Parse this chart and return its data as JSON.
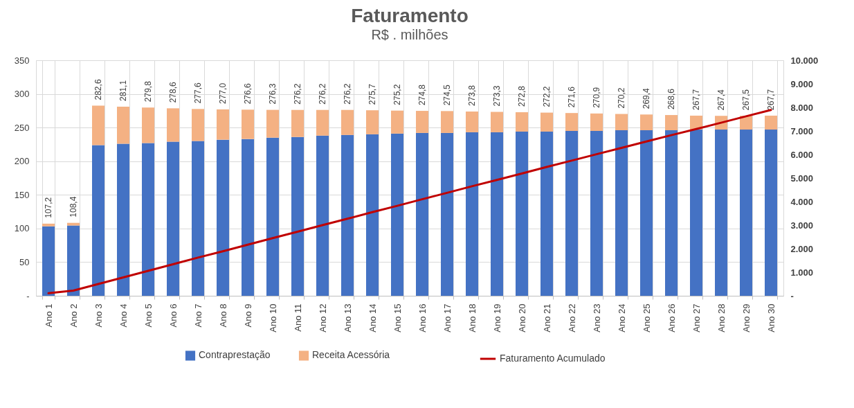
{
  "chart_data": {
    "type": "bar",
    "stacked": true,
    "title": "Faturamento",
    "subtitle": "R$ . milhões",
    "categories": [
      "Ano 1",
      "Ano 2",
      "Ano 3",
      "Ano 4",
      "Ano 5",
      "Ano 6",
      "Ano 7",
      "Ano 8",
      "Ano 9",
      "Ano 10",
      "Ano 11",
      "Ano 12",
      "Ano 13",
      "Ano 14",
      "Ano 15",
      "Ano 16",
      "Ano 17",
      "Ano 18",
      "Ano 19",
      "Ano 20",
      "Ano 21",
      "Ano 22",
      "Ano 23",
      "Ano 24",
      "Ano 25",
      "Ano 26",
      "Ano 27",
      "Ano 28",
      "Ano 29",
      "Ano 30"
    ],
    "series": [
      {
        "name": "Contraprestação",
        "color": "#4472c4",
        "values": [
          103.2,
          104.4,
          224,
          226,
          227,
          229,
          230,
          232,
          233,
          235,
          236,
          238,
          239,
          240,
          241,
          242,
          242,
          243,
          243,
          244,
          244,
          245,
          245,
          246,
          246,
          246,
          247,
          247,
          247,
          247
        ]
      },
      {
        "name": "Receita Acessória",
        "color": "#f4b183",
        "values": [
          4.0,
          4.0,
          58.6,
          55.1,
          52.8,
          49.6,
          47.6,
          45.0,
          43.6,
          41.3,
          40.2,
          38.2,
          37.2,
          35.7,
          34.2,
          32.8,
          32.5,
          30.8,
          30.3,
          28.8,
          28.2,
          26.6,
          25.9,
          24.2,
          23.4,
          22.6,
          20.7,
          20.4,
          20.5,
          20.7
        ]
      },
      {
        "name": "Faturamento Acumulado",
        "type": "line",
        "axis": "y2",
        "color": "#c00000",
        "values": [
          110,
          220,
          500,
          780,
          1060,
          1340,
          1620,
          1890,
          2170,
          2450,
          2720,
          3000,
          3270,
          3550,
          3820,
          4100,
          4370,
          4650,
          4920,
          5190,
          5470,
          5740,
          6010,
          6280,
          6550,
          6820,
          7080,
          7350,
          7620,
          7890
        ]
      }
    ],
    "totals": [
      "107,2",
      "108,4",
      "282,6",
      "281,1",
      "279,8",
      "278,6",
      "277,6",
      "277,0",
      "276,6",
      "276,3",
      "276,2",
      "276,2",
      "276,2",
      "275,7",
      "275,2",
      "274,8",
      "274,5",
      "273,8",
      "273,3",
      "272,8",
      "272,2",
      "271,6",
      "270,9",
      "270,2",
      "269,4",
      "268,6",
      "267,7",
      "267,4",
      "267,5",
      "267,7"
    ],
    "ylim": [
      0,
      350
    ],
    "yticks": [
      {
        "value": 0,
        "label": "-"
      },
      50,
      100,
      150,
      200,
      250,
      300,
      350
    ],
    "y2lim": [
      0,
      10000
    ],
    "y2ticks": [
      {
        "value": 0,
        "label": "-"
      },
      {
        "value": 1000,
        "label": "1.000"
      },
      {
        "value": 2000,
        "label": "2.000"
      },
      {
        "value": 3000,
        "label": "3.000"
      },
      {
        "value": 4000,
        "label": "4.000"
      },
      {
        "value": 5000,
        "label": "5.000"
      },
      {
        "value": 6000,
        "label": "6.000"
      },
      {
        "value": 7000,
        "label": "7.000"
      },
      {
        "value": 8000,
        "label": "8.000"
      },
      {
        "value": 9000,
        "label": "9.000"
      },
      {
        "value": 10000,
        "label": "10.000"
      }
    ],
    "grid": true,
    "legend": "bottom"
  }
}
